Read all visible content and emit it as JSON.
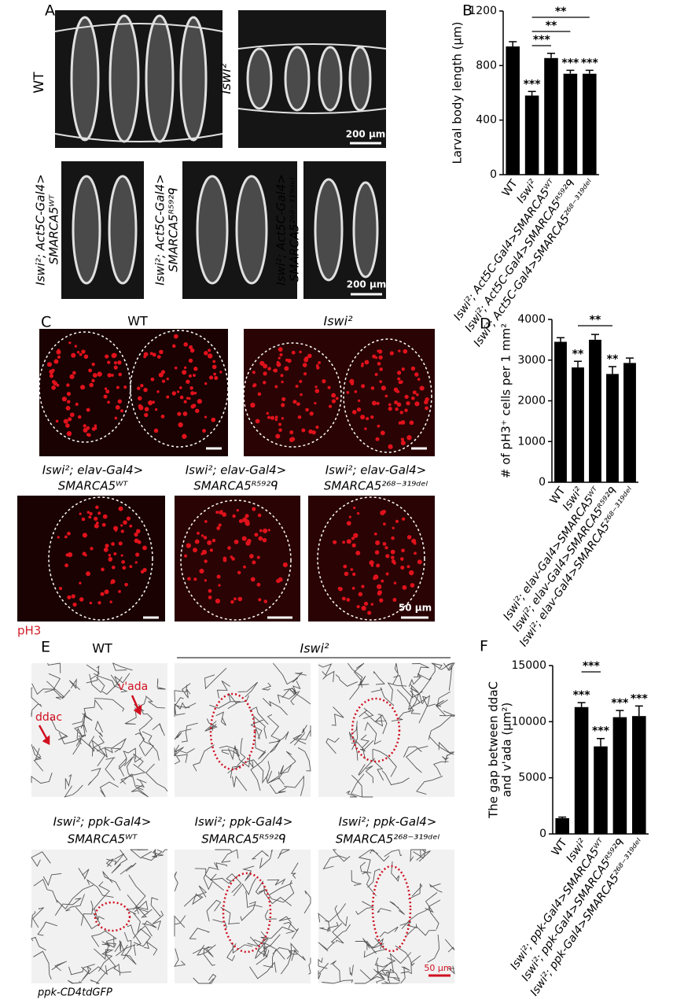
{
  "figure": {
    "panel_labels": [
      "A",
      "B",
      "C",
      "D",
      "E",
      "F"
    ],
    "panel_a": {
      "wt_label": "WT",
      "mutant_label": "Iswi²",
      "rescue_labels": [
        [
          "Iswi²; Act5C-Gal4>",
          "SMARCA5ᵂᵀ"
        ],
        [
          "Iswi²; Act5C-Gal4>",
          "SMARCA5ᴿ⁵⁹²ᑫ"
        ],
        [
          "Iswi²; Act5C-Gal4>",
          "SMARCA5²⁶⁸⁻³¹⁹ᵈᵉˡ"
        ]
      ],
      "scale_bars": [
        "200 μm",
        "200 μm"
      ]
    },
    "panel_c": {
      "wt_label": "WT",
      "mutant_label": "Iswi²",
      "rescue_labels": [
        [
          "Iswi²; elav-Gal4>",
          "SMARCA5ᵂᵀ"
        ],
        [
          "Iswi²; elav-Gal4>",
          "SMARCA5ᴿ⁵⁹²ᑫ"
        ],
        [
          "Iswi²; elav-Gal4>",
          "SMARCA5²⁶⁸⁻³¹⁹ᵈᵉˡ"
        ]
      ],
      "scale_bar": "50 μm",
      "stain": "pH3"
    },
    "panel_e": {
      "wt_label": "WT",
      "mutant_label": "Iswi²",
      "neuron_labels": [
        "ddac",
        "v'ada"
      ],
      "rescue_labels": [
        [
          "Iswi²; ppk-Gal4>",
          "SMARCA5ᵂᵀ"
        ],
        [
          "Iswi²; ppk-Gal4>",
          "SMARCA5ᴿ⁵⁹²ᑫ"
        ],
        [
          "Iswi²; ppk-Gal4>",
          "SMARCA5²⁶⁸⁻³¹⁹ᵈᵉˡ"
        ]
      ],
      "scale_bar": "50 μm",
      "reporter": "ppk-CD4tdGFP"
    }
  },
  "chart_data": [
    {
      "type": "bar",
      "ylabel": [
        "Larval body length (μm)"
      ],
      "categories": [
        "WT",
        "Iswi²",
        "Iswi²; Act5C-Gal4>SMARCA5ᵂᵀ",
        "Iswi²; Act5C-Gal4>SMARCA5ᴿ⁵⁹²ᑫ",
        "Iswi²; Act5C-Gal4>SMARCA5²⁶⁸⁻³¹⁹ᵈᵉˡ"
      ],
      "values": [
        940,
        580,
        855,
        740,
        740
      ],
      "errors": [
        35,
        30,
        35,
        25,
        25
      ],
      "color": "#000000",
      "ylim": [
        0,
        1200
      ],
      "yticks": [
        0,
        400,
        800,
        1200
      ],
      "significance": [
        null,
        "***",
        null,
        "***",
        "***"
      ],
      "brackets": [
        {
          "from": 1,
          "to": 4,
          "label": "**"
        },
        {
          "from": 1,
          "to": 3,
          "label": "**"
        },
        {
          "from": 1,
          "to": 2,
          "label": "***"
        }
      ]
    },
    {
      "type": "bar",
      "ylabel": [
        "# of pH3⁺ cells per 1 mm²"
      ],
      "categories": [
        "WT",
        "Iswi²",
        "Iswi²; elav-Gal4>SMARCA5ᵂᵀ",
        "Iswi²; elav-Gal4>SMARCA5ᴿ⁵⁹²ᑫ",
        "Iswi²; elav-Gal4>SMARCA5²⁶⁸⁻³¹⁹ᵈᵉˡ"
      ],
      "values": [
        3450,
        2820,
        3500,
        2660,
        2930
      ],
      "errors": [
        100,
        150,
        130,
        180,
        120
      ],
      "color": "#000000",
      "ylim": [
        0,
        4000
      ],
      "yticks": [
        0,
        1000,
        2000,
        3000,
        4000
      ],
      "significance": [
        null,
        "**",
        null,
        "**",
        null
      ],
      "brackets": [
        {
          "from": 1,
          "to": 3,
          "label": "**"
        }
      ]
    },
    {
      "type": "bar",
      "ylabel": [
        "The gap between ddaC",
        "and v'ada (μm²)"
      ],
      "categories": [
        "WT",
        "Iswi²",
        "Iswi²; ppk-Gal4>SMARCA5ᵂᵀ",
        "Iswi²; ppk-Gal4>SMARCA5ᴿ⁵⁹²ᑫ",
        "Iswi²; ppk-Gal4>SMARCA5²⁶⁸⁻³¹⁹ᵈᵉˡ"
      ],
      "values": [
        1400,
        11300,
        7800,
        10400,
        10500
      ],
      "errors": [
        100,
        400,
        700,
        600,
        900
      ],
      "color": "#000000",
      "ylim": [
        0,
        15000
      ],
      "yticks": [
        0,
        5000,
        10000,
        15000
      ],
      "significance": [
        null,
        "***",
        "***",
        "***",
        "***"
      ],
      "brackets": [
        {
          "from": 1,
          "to": 2,
          "label": "***"
        }
      ]
    }
  ]
}
